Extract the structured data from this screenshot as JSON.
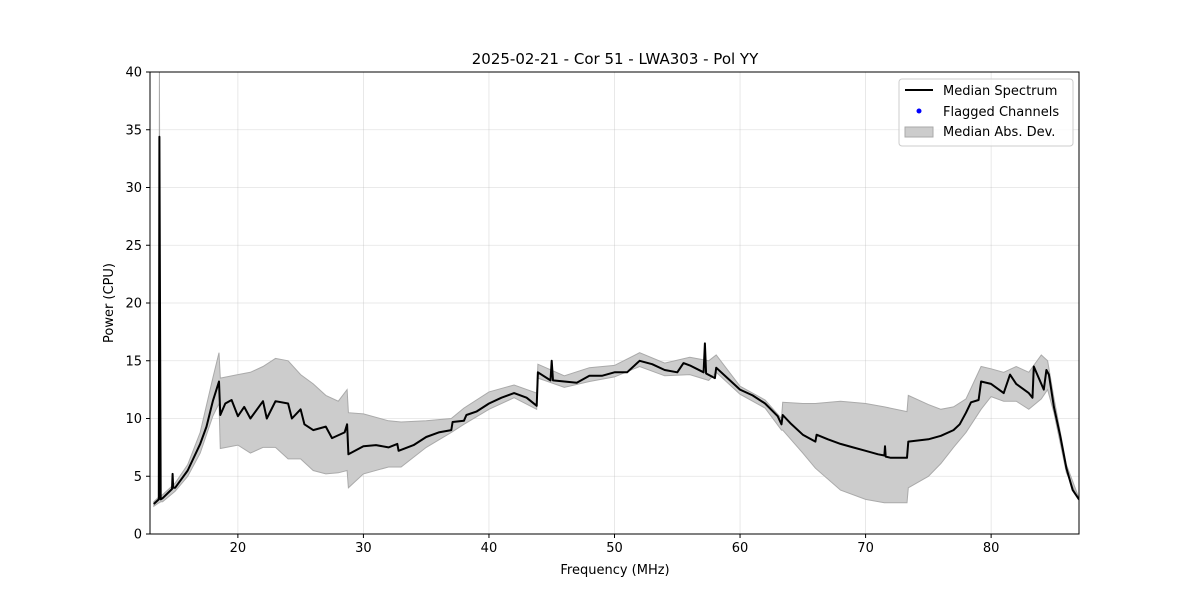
{
  "chart_data": {
    "type": "line",
    "title": "2025-02-21 - Cor 51 - LWA303 - Pol YY",
    "xlabel": "Frequency (MHz)",
    "ylabel": "Power (CPU)",
    "xlim": [
      13,
      87
    ],
    "ylim": [
      0,
      40
    ],
    "xticks": [
      20,
      30,
      40,
      50,
      60,
      70,
      80
    ],
    "yticks": [
      0,
      5,
      10,
      15,
      20,
      25,
      30,
      35,
      40
    ],
    "grid": true,
    "legend_position": "top-right",
    "legend": [
      "Median Spectrum",
      "Flagged Channels",
      "Median Abs. Dev."
    ],
    "colors": {
      "median": "#000000",
      "flagged": "#0000ff",
      "band": "#cccccc",
      "band_edge": "#aaaaaa"
    },
    "flagged_channels": [],
    "median": [
      [
        13.3,
        2.6
      ],
      [
        13.7,
        3.0
      ],
      [
        13.75,
        34.4
      ],
      [
        13.85,
        3.0
      ],
      [
        14,
        3.1
      ],
      [
        14.75,
        3.9
      ],
      [
        14.8,
        5.2
      ],
      [
        14.85,
        4.0
      ],
      [
        15,
        4.0
      ],
      [
        16,
        5.5
      ],
      [
        17,
        7.8
      ],
      [
        17.5,
        9.3
      ],
      [
        18,
        11.5
      ],
      [
        18.5,
        13.2
      ],
      [
        18.6,
        10.3
      ],
      [
        19,
        11.3
      ],
      [
        19.5,
        11.6
      ],
      [
        20,
        10.2
      ],
      [
        20.5,
        11.0
      ],
      [
        21,
        10.0
      ],
      [
        22,
        11.5
      ],
      [
        22.3,
        10.0
      ],
      [
        23,
        11.5
      ],
      [
        24,
        11.3
      ],
      [
        24.3,
        10.0
      ],
      [
        25,
        10.8
      ],
      [
        25.3,
        9.5
      ],
      [
        26,
        9.0
      ],
      [
        27,
        9.3
      ],
      [
        27.5,
        8.3
      ],
      [
        28.5,
        8.8
      ],
      [
        28.7,
        9.5
      ],
      [
        28.8,
        6.9
      ],
      [
        30,
        7.6
      ],
      [
        31,
        7.7
      ],
      [
        32,
        7.5
      ],
      [
        32.7,
        7.8
      ],
      [
        32.8,
        7.2
      ],
      [
        34,
        7.7
      ],
      [
        35,
        8.4
      ],
      [
        36,
        8.8
      ],
      [
        37,
        9.0
      ],
      [
        37.1,
        9.7
      ],
      [
        38,
        9.8
      ],
      [
        38.2,
        10.3
      ],
      [
        39,
        10.6
      ],
      [
        40,
        11.3
      ],
      [
        41,
        11.8
      ],
      [
        42,
        12.2
      ],
      [
        43,
        11.8
      ],
      [
        43.8,
        11.1
      ],
      [
        43.9,
        14.0
      ],
      [
        44.9,
        13.3
      ],
      [
        45,
        15.0
      ],
      [
        45.1,
        13.3
      ],
      [
        46,
        13.2
      ],
      [
        47,
        13.1
      ],
      [
        48,
        13.7
      ],
      [
        49,
        13.7
      ],
      [
        50,
        14.0
      ],
      [
        51,
        14.0
      ],
      [
        52,
        15.0
      ],
      [
        53,
        14.7
      ],
      [
        54,
        14.2
      ],
      [
        55,
        14.0
      ],
      [
        55.5,
        14.8
      ],
      [
        56,
        14.6
      ],
      [
        57.1,
        14.0
      ],
      [
        57.2,
        16.5
      ],
      [
        57.3,
        13.9
      ],
      [
        58,
        13.5
      ],
      [
        58.1,
        14.4
      ],
      [
        59,
        13.5
      ],
      [
        60,
        12.5
      ],
      [
        61,
        12.0
      ],
      [
        62,
        11.3
      ],
      [
        63,
        10.2
      ],
      [
        63.3,
        9.5
      ],
      [
        63.4,
        10.3
      ],
      [
        64,
        9.6
      ],
      [
        65,
        8.6
      ],
      [
        66,
        8.0
      ],
      [
        66.1,
        8.6
      ],
      [
        67,
        8.2
      ],
      [
        68,
        7.8
      ],
      [
        69,
        7.5
      ],
      [
        70,
        7.2
      ],
      [
        71,
        6.9
      ],
      [
        71.5,
        6.8
      ],
      [
        71.55,
        7.6
      ],
      [
        71.6,
        6.7
      ],
      [
        72,
        6.6
      ],
      [
        73.3,
        6.6
      ],
      [
        73.4,
        8.0
      ],
      [
        75,
        8.2
      ],
      [
        76,
        8.5
      ],
      [
        77,
        9.0
      ],
      [
        77.5,
        9.5
      ],
      [
        78,
        10.5
      ],
      [
        78.4,
        11.4
      ],
      [
        79,
        11.6
      ],
      [
        79.2,
        13.2
      ],
      [
        80,
        13.0
      ],
      [
        81,
        12.2
      ],
      [
        81.5,
        13.8
      ],
      [
        82,
        13.0
      ],
      [
        83,
        12.2
      ],
      [
        83.3,
        11.8
      ],
      [
        83.4,
        14.5
      ],
      [
        84,
        13.0
      ],
      [
        84.2,
        12.5
      ],
      [
        84.4,
        14.2
      ],
      [
        84.6,
        13.8
      ],
      [
        85,
        11.0
      ],
      [
        85.5,
        8.5
      ],
      [
        86,
        5.7
      ],
      [
        86.5,
        3.8
      ],
      [
        87,
        3.0
      ]
    ],
    "mad_band": [
      [
        13.3,
        2.4,
        2.8
      ],
      [
        13.7,
        2.7,
        3.2
      ],
      [
        13.75,
        2.7,
        40
      ],
      [
        13.85,
        2.8,
        3.3
      ],
      [
        14,
        2.8,
        3.4
      ],
      [
        15,
        3.7,
        4.4
      ],
      [
        16,
        5.0,
        6.0
      ],
      [
        17,
        7.0,
        8.8
      ],
      [
        18,
        10.2,
        13.5
      ],
      [
        18.5,
        11.3,
        15.7
      ],
      [
        18.6,
        7.4,
        13.5
      ],
      [
        20,
        7.7,
        13.8
      ],
      [
        21,
        7.0,
        14.0
      ],
      [
        22,
        7.5,
        14.5
      ],
      [
        23,
        7.5,
        15.2
      ],
      [
        24,
        6.5,
        15.0
      ],
      [
        25,
        6.5,
        13.8
      ],
      [
        26,
        5.5,
        13.0
      ],
      [
        27,
        5.2,
        12.0
      ],
      [
        28,
        5.3,
        11.5
      ],
      [
        28.7,
        5.5,
        12.5
      ],
      [
        28.8,
        4.0,
        10.5
      ],
      [
        30,
        5.2,
        10.4
      ],
      [
        32,
        5.8,
        9.8
      ],
      [
        33,
        5.8,
        9.7
      ],
      [
        35,
        7.5,
        9.8
      ],
      [
        37,
        8.8,
        10.0
      ],
      [
        38,
        9.5,
        10.9
      ],
      [
        40,
        10.8,
        12.3
      ],
      [
        42,
        11.8,
        12.9
      ],
      [
        43.8,
        10.8,
        12.2
      ],
      [
        43.9,
        13.5,
        14.7
      ],
      [
        46,
        12.7,
        13.7
      ],
      [
        48,
        13.2,
        14.4
      ],
      [
        50,
        13.6,
        14.6
      ],
      [
        52,
        14.5,
        15.7
      ],
      [
        54,
        13.7,
        14.8
      ],
      [
        56,
        13.8,
        15.3
      ],
      [
        57.5,
        13.3,
        15.0
      ],
      [
        58.1,
        14.0,
        15.5
      ],
      [
        60,
        12.1,
        12.8
      ],
      [
        62,
        10.9,
        11.6
      ],
      [
        63.3,
        9.0,
        10.0
      ],
      [
        63.4,
        9.0,
        11.4
      ],
      [
        65,
        7.0,
        11.3
      ],
      [
        66,
        5.7,
        11.3
      ],
      [
        68,
        3.8,
        11.5
      ],
      [
        70,
        3.0,
        11.3
      ],
      [
        71.5,
        2.7,
        11.0
      ],
      [
        73.3,
        2.7,
        10.6
      ],
      [
        73.4,
        4.0,
        12.0
      ],
      [
        75,
        5.0,
        11.2
      ],
      [
        76,
        6.1,
        10.8
      ],
      [
        77,
        7.5,
        11.0
      ],
      [
        78,
        8.8,
        11.7
      ],
      [
        79.2,
        10.8,
        14.5
      ],
      [
        80,
        11.9,
        14.3
      ],
      [
        81,
        11.5,
        14.0
      ],
      [
        82,
        11.5,
        14.5
      ],
      [
        83,
        10.8,
        14.0
      ],
      [
        84,
        11.7,
        15.5
      ],
      [
        84.5,
        12.5,
        15.0
      ],
      [
        85,
        10.5,
        11.8
      ],
      [
        86,
        5.3,
        6.0
      ],
      [
        87,
        2.9,
        3.1
      ]
    ]
  }
}
